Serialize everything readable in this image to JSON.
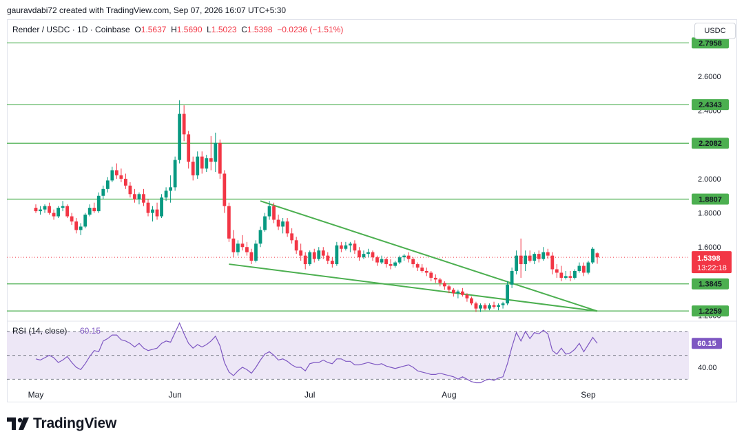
{
  "header": {
    "caption": "gauravdabi72 created with TradingView.com, Sep 07, 2026 16:07 UTC+5:30",
    "symbol": "Render / USDC · 1D · Coinbase",
    "o_label": "O",
    "o_value": "1.5637",
    "h_label": "H",
    "h_value": "1.5690",
    "l_label": "L",
    "l_value": "1.5023",
    "c_label": "C",
    "c_value": "1.5398",
    "change": "−0.0236 (−1.51%)",
    "currency": "USDC"
  },
  "colors": {
    "up": "#089981",
    "down": "#f23645",
    "level": "#4caf50",
    "trend": "#4caf50",
    "rsi_line": "#7e57c2",
    "rsi_band": "#ede7f6"
  },
  "chart_data": [
    {
      "type": "candlestick",
      "title": "Render / USDC · 1D · Coinbase",
      "ylim": [
        1.17,
        2.93
      ],
      "y_ticks": [
        "2.6000",
        "2.4000",
        "2.0000",
        "1.8000",
        "1.6000",
        "1.2000"
      ],
      "x_ticks": [
        "May",
        "Jun",
        "Jul",
        "Aug",
        "Sep"
      ],
      "x_tick_days": [
        0,
        31,
        61,
        92,
        123
      ],
      "level_lines": [
        {
          "label": "2.7958",
          "value": 2.7958
        },
        {
          "label": "2.4343",
          "value": 2.4343
        },
        {
          "label": "2.2082",
          "value": 2.2082
        },
        {
          "label": "1.8807",
          "value": 1.8807
        },
        {
          "label": "1.3845",
          "value": 1.3845
        },
        {
          "label": "1.2259",
          "value": 1.2259
        }
      ],
      "last_price": {
        "label": "1.5398",
        "value": 1.5398,
        "countdown": "13:22:18"
      },
      "trendlines": [
        {
          "start": [
            "2026-06-14",
            1.87
          ],
          "end": [
            "2026-08-28",
            1.225
          ]
        },
        {
          "start": [
            "2026-06-07",
            1.5
          ],
          "end": [
            "2026-08-28",
            1.225
          ]
        }
      ],
      "start_date": "2026-04-25",
      "candles": [
        [
          1.83,
          1.85,
          1.8,
          1.81
        ],
        [
          1.81,
          1.84,
          1.79,
          1.82
        ],
        [
          1.82,
          1.85,
          1.8,
          1.84
        ],
        [
          1.84,
          1.86,
          1.79,
          1.8
        ],
        [
          1.8,
          1.82,
          1.76,
          1.78
        ],
        [
          1.78,
          1.84,
          1.77,
          1.83
        ],
        [
          1.83,
          1.87,
          1.81,
          1.84
        ],
        [
          1.84,
          1.85,
          1.77,
          1.78
        ],
        [
          1.78,
          1.8,
          1.73,
          1.75
        ],
        [
          1.75,
          1.77,
          1.68,
          1.7
        ],
        [
          1.7,
          1.74,
          1.67,
          1.72
        ],
        [
          1.72,
          1.8,
          1.71,
          1.79
        ],
        [
          1.79,
          1.85,
          1.78,
          1.83
        ],
        [
          1.83,
          1.86,
          1.8,
          1.81
        ],
        [
          1.81,
          1.92,
          1.8,
          1.9
        ],
        [
          1.9,
          1.96,
          1.88,
          1.94
        ],
        [
          1.94,
          2.01,
          1.92,
          1.99
        ],
        [
          1.99,
          2.07,
          1.98,
          2.05
        ],
        [
          2.05,
          2.09,
          2.0,
          2.02
        ],
        [
          2.02,
          2.06,
          1.98,
          2.0
        ],
        [
          2.0,
          2.03,
          1.94,
          1.96
        ],
        [
          1.96,
          1.98,
          1.89,
          1.91
        ],
        [
          1.91,
          1.94,
          1.86,
          1.88
        ],
        [
          1.88,
          1.92,
          1.85,
          1.91
        ],
        [
          1.91,
          1.94,
          1.84,
          1.86
        ],
        [
          1.86,
          1.88,
          1.78,
          1.8
        ],
        [
          1.8,
          1.84,
          1.75,
          1.82
        ],
        [
          1.82,
          1.86,
          1.76,
          1.78
        ],
        [
          1.78,
          1.91,
          1.77,
          1.89
        ],
        [
          1.89,
          1.95,
          1.87,
          1.93
        ],
        [
          1.93,
          2.02,
          1.86,
          1.95
        ],
        [
          1.95,
          2.13,
          1.93,
          2.11
        ],
        [
          2.11,
          2.46,
          2.09,
          2.38
        ],
        [
          2.38,
          2.43,
          2.22,
          2.26
        ],
        [
          2.26,
          2.28,
          2.06,
          2.1
        ],
        [
          2.1,
          2.13,
          1.99,
          2.02
        ],
        [
          2.02,
          2.16,
          2.0,
          2.13
        ],
        [
          2.13,
          2.16,
          2.03,
          2.06
        ],
        [
          2.06,
          2.14,
          2.04,
          2.12
        ],
        [
          2.12,
          2.25,
          2.05,
          2.1
        ],
        [
          2.1,
          2.27,
          2.04,
          2.21
        ],
        [
          2.21,
          2.23,
          2.0,
          2.03
        ],
        [
          2.03,
          2.05,
          1.8,
          1.84
        ],
        [
          1.84,
          1.86,
          1.63,
          1.65
        ],
        [
          1.65,
          1.7,
          1.54,
          1.57
        ],
        [
          1.57,
          1.64,
          1.55,
          1.62
        ],
        [
          1.62,
          1.67,
          1.58,
          1.6
        ],
        [
          1.6,
          1.63,
          1.55,
          1.57
        ],
        [
          1.57,
          1.59,
          1.5,
          1.52
        ],
        [
          1.52,
          1.64,
          1.51,
          1.62
        ],
        [
          1.62,
          1.72,
          1.6,
          1.7
        ],
        [
          1.7,
          1.8,
          1.69,
          1.78
        ],
        [
          1.78,
          1.87,
          1.76,
          1.84
        ],
        [
          1.84,
          1.86,
          1.74,
          1.76
        ],
        [
          1.76,
          1.79,
          1.7,
          1.72
        ],
        [
          1.72,
          1.77,
          1.68,
          1.75
        ],
        [
          1.75,
          1.77,
          1.66,
          1.68
        ],
        [
          1.68,
          1.71,
          1.62,
          1.64
        ],
        [
          1.64,
          1.66,
          1.56,
          1.58
        ],
        [
          1.58,
          1.62,
          1.52,
          1.55
        ],
        [
          1.55,
          1.57,
          1.47,
          1.5
        ],
        [
          1.5,
          1.58,
          1.49,
          1.57
        ],
        [
          1.57,
          1.59,
          1.51,
          1.53
        ],
        [
          1.53,
          1.6,
          1.52,
          1.58
        ],
        [
          1.58,
          1.6,
          1.53,
          1.55
        ],
        [
          1.55,
          1.57,
          1.5,
          1.52
        ],
        [
          1.52,
          1.54,
          1.48,
          1.5
        ],
        [
          1.5,
          1.63,
          1.49,
          1.61
        ],
        [
          1.61,
          1.63,
          1.57,
          1.59
        ],
        [
          1.59,
          1.63,
          1.58,
          1.61
        ],
        [
          1.61,
          1.63,
          1.57,
          1.62
        ],
        [
          1.62,
          1.64,
          1.56,
          1.58
        ],
        [
          1.58,
          1.6,
          1.52,
          1.54
        ],
        [
          1.54,
          1.58,
          1.53,
          1.56
        ],
        [
          1.56,
          1.59,
          1.54,
          1.57
        ],
        [
          1.57,
          1.58,
          1.52,
          1.54
        ],
        [
          1.54,
          1.55,
          1.49,
          1.51
        ],
        [
          1.51,
          1.55,
          1.5,
          1.53
        ],
        [
          1.53,
          1.54,
          1.48,
          1.5
        ],
        [
          1.5,
          1.53,
          1.47,
          1.49
        ],
        [
          1.49,
          1.52,
          1.48,
          1.51
        ],
        [
          1.51,
          1.55,
          1.5,
          1.54
        ],
        [
          1.54,
          1.56,
          1.52,
          1.55
        ],
        [
          1.55,
          1.57,
          1.51,
          1.53
        ],
        [
          1.53,
          1.54,
          1.48,
          1.5
        ],
        [
          1.5,
          1.51,
          1.46,
          1.48
        ],
        [
          1.48,
          1.5,
          1.45,
          1.46
        ],
        [
          1.46,
          1.48,
          1.43,
          1.45
        ],
        [
          1.45,
          1.46,
          1.4,
          1.42
        ],
        [
          1.42,
          1.44,
          1.39,
          1.41
        ],
        [
          1.41,
          1.42,
          1.37,
          1.39
        ],
        [
          1.39,
          1.4,
          1.35,
          1.37
        ],
        [
          1.37,
          1.38,
          1.33,
          1.35
        ],
        [
          1.35,
          1.36,
          1.31,
          1.33
        ],
        [
          1.33,
          1.35,
          1.3,
          1.34
        ],
        [
          1.34,
          1.36,
          1.31,
          1.32
        ],
        [
          1.32,
          1.33,
          1.28,
          1.3
        ],
        [
          1.3,
          1.31,
          1.26,
          1.27
        ],
        [
          1.27,
          1.28,
          1.22,
          1.24
        ],
        [
          1.24,
          1.27,
          1.22,
          1.26
        ],
        [
          1.26,
          1.27,
          1.23,
          1.24
        ],
        [
          1.24,
          1.27,
          1.23,
          1.26
        ],
        [
          1.26,
          1.28,
          1.24,
          1.25
        ],
        [
          1.25,
          1.27,
          1.23,
          1.26
        ],
        [
          1.26,
          1.28,
          1.24,
          1.27
        ],
        [
          1.27,
          1.4,
          1.26,
          1.38
        ],
        [
          1.38,
          1.48,
          1.36,
          1.46
        ],
        [
          1.46,
          1.58,
          1.44,
          1.55
        ],
        [
          1.55,
          1.65,
          1.42,
          1.5
        ],
        [
          1.5,
          1.58,
          1.46,
          1.55
        ],
        [
          1.55,
          1.58,
          1.51,
          1.52
        ],
        [
          1.52,
          1.57,
          1.5,
          1.56
        ],
        [
          1.56,
          1.58,
          1.51,
          1.53
        ],
        [
          1.53,
          1.6,
          1.52,
          1.57
        ],
        [
          1.57,
          1.59,
          1.53,
          1.55
        ],
        [
          1.55,
          1.57,
          1.44,
          1.47
        ],
        [
          1.47,
          1.5,
          1.42,
          1.45
        ],
        [
          1.45,
          1.49,
          1.4,
          1.42
        ],
        [
          1.42,
          1.46,
          1.41,
          1.43
        ],
        [
          1.43,
          1.46,
          1.4,
          1.42
        ],
        [
          1.42,
          1.47,
          1.41,
          1.46
        ],
        [
          1.46,
          1.51,
          1.45,
          1.49
        ],
        [
          1.49,
          1.51,
          1.43,
          1.45
        ],
        [
          1.45,
          1.52,
          1.44,
          1.51
        ],
        [
          1.51,
          1.6,
          1.5,
          1.59
        ],
        [
          1.5637,
          1.569,
          1.5023,
          1.5398
        ]
      ]
    },
    {
      "type": "line",
      "title": "RSI (14, close)",
      "value_label": "60.15",
      "ylim": [
        25,
        78
      ],
      "y_ticks": [
        "40.00"
      ],
      "bands": [
        70,
        50,
        30
      ],
      "values": [
        47,
        46,
        48,
        50,
        48,
        44,
        46,
        49,
        44,
        40,
        38,
        43,
        49,
        54,
        53,
        62,
        64,
        67,
        67,
        63,
        62,
        60,
        57,
        60,
        56,
        54,
        55,
        56,
        60,
        62,
        61,
        69,
        77,
        68,
        60,
        56,
        59,
        57,
        59,
        62,
        66,
        58,
        44,
        36,
        33,
        37,
        40,
        38,
        35,
        40,
        46,
        51,
        53,
        50,
        46,
        47,
        45,
        42,
        40,
        40,
        37,
        43,
        44,
        44,
        46,
        44,
        43,
        47,
        47,
        45,
        45,
        42,
        42,
        43,
        44,
        43,
        42,
        43,
        41,
        40,
        39,
        40,
        41,
        42,
        40,
        37,
        36,
        35,
        34,
        34,
        35,
        34,
        33,
        32,
        30,
        32,
        30,
        28,
        27,
        27,
        29,
        30,
        29,
        31,
        32,
        43,
        57,
        69,
        62,
        70,
        64,
        69,
        68,
        71,
        68,
        54,
        51,
        56,
        51,
        52,
        55,
        60,
        53,
        59,
        65,
        60
      ]
    }
  ],
  "branding": {
    "logo_text": "TradingView"
  }
}
